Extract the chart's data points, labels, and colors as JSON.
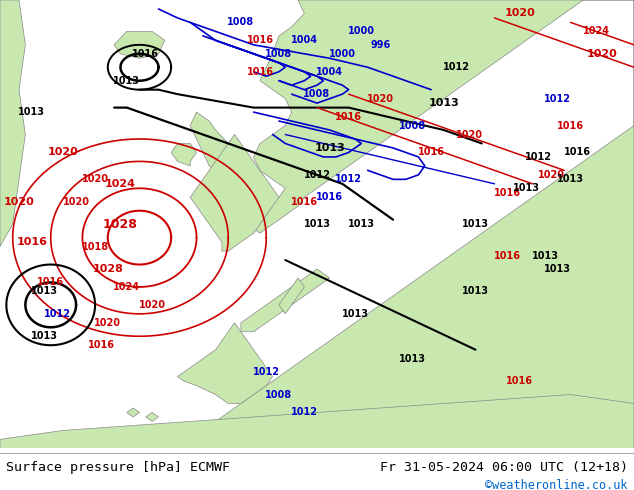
{
  "title_left": "Surface pressure [hPa] ECMWF",
  "title_right": "Fr 31-05-2024 06:00 UTC (12+18)",
  "watermark": "©weatheronline.co.uk",
  "watermark_color": "#0066cc",
  "land_color": "#c8e8b0",
  "sea_color": "#d8d8d8",
  "coast_color": "#888888",
  "bg_color": "#ffffff",
  "text_color": "#000000",
  "title_fontsize": 9.5,
  "watermark_fontsize": 8.5,
  "fig_width": 6.34,
  "fig_height": 4.9,
  "dpi": 100,
  "blue": "#0000cc",
  "red": "#cc0000",
  "black": "#000000"
}
